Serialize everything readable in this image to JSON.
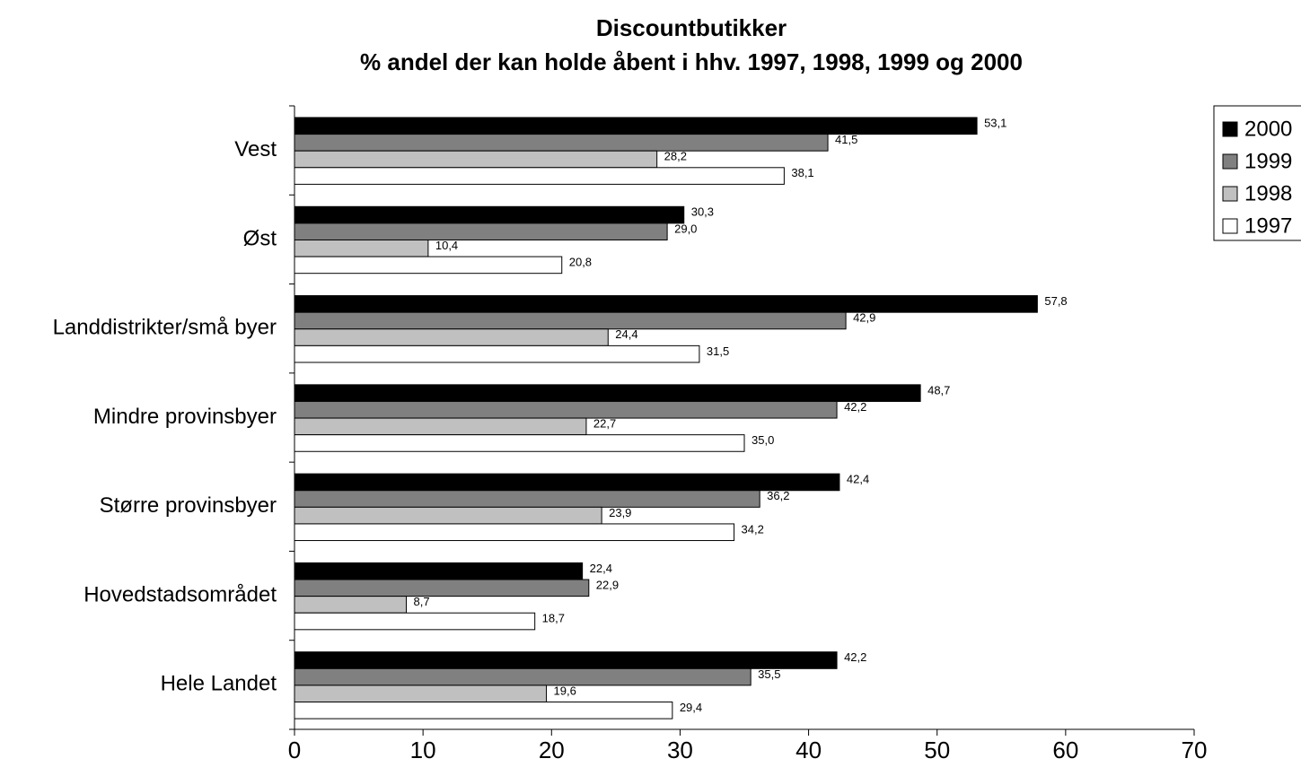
{
  "chart_data": {
    "type": "barh",
    "title": "Discountbutikker",
    "subtitle": "% andel der kan holde åbent i hhv. 1997, 1998, 1999 og 2000",
    "categories": [
      "Vest",
      "Øst",
      "Landdistrikter/små byer",
      "Mindre provinsbyer",
      "Større provinsbyer",
      "Hovedstadsområdet",
      "Hele Landet"
    ],
    "series": [
      {
        "name": "2000",
        "color": "#000000",
        "values": [
          53.1,
          30.3,
          57.8,
          48.7,
          42.4,
          22.4,
          42.2
        ],
        "value_labels": [
          "53,1",
          "30,3",
          "57,8",
          "48,7",
          "42,4",
          "22,4",
          "42,2"
        ]
      },
      {
        "name": "1999",
        "color": "#808080",
        "values": [
          41.5,
          29.0,
          42.9,
          42.2,
          36.2,
          22.9,
          35.5
        ],
        "value_labels": [
          "41,5",
          "29,0",
          "42,9",
          "42,2",
          "36,2",
          "22,9",
          "35,5"
        ]
      },
      {
        "name": "1998",
        "color": "#c0c0c0",
        "values": [
          28.2,
          10.4,
          24.4,
          22.7,
          23.9,
          8.7,
          19.6
        ],
        "value_labels": [
          "28,2",
          "10,4",
          "24,4",
          "22,7",
          "23,9",
          "8,7",
          "19,6"
        ]
      },
      {
        "name": "1997",
        "color": "#ffffff",
        "values": [
          38.1,
          20.8,
          31.5,
          35.0,
          34.2,
          18.7,
          29.4
        ],
        "value_labels": [
          "38,1",
          "20,8",
          "31,5",
          "35,0",
          "34,2",
          "18,7",
          "29,4"
        ]
      }
    ],
    "xlim": [
      0,
      70
    ],
    "xticks": [
      0,
      10,
      20,
      30,
      40,
      50,
      60,
      70
    ],
    "legend": "right"
  }
}
